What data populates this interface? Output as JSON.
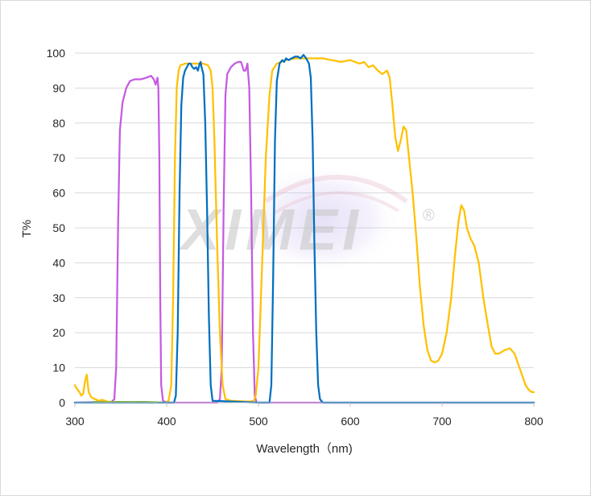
{
  "chart_data": {
    "type": "line",
    "title": "",
    "xlabel": "Wavelength（nm)",
    "ylabel": "T%",
    "xlim": [
      300,
      800
    ],
    "ylim": [
      0,
      100
    ],
    "xticks": [
      300,
      400,
      500,
      600,
      700,
      800
    ],
    "yticks": [
      0,
      10,
      20,
      30,
      40,
      50,
      60,
      70,
      80,
      90,
      100
    ],
    "grid": "horizontal",
    "legend": "none",
    "watermark": "XIMEI",
    "watermark_mark": "®",
    "series": [
      {
        "color": "#c55ae3",
        "points": [
          [
            300,
            0
          ],
          [
            340,
            0.2
          ],
          [
            343,
            1
          ],
          [
            345,
            10
          ],
          [
            347,
            50
          ],
          [
            349,
            78
          ],
          [
            352,
            86
          ],
          [
            356,
            90
          ],
          [
            360,
            92
          ],
          [
            365,
            92.5
          ],
          [
            372,
            92.5
          ],
          [
            378,
            93
          ],
          [
            383,
            93.5
          ],
          [
            386,
            92.5
          ],
          [
            388,
            91
          ],
          [
            390,
            93
          ],
          [
            391,
            90
          ],
          [
            392,
            70
          ],
          [
            393,
            30
          ],
          [
            394,
            5
          ],
          [
            396,
            0.5
          ],
          [
            400,
            0
          ],
          [
            455,
            0
          ],
          [
            458,
            1
          ],
          [
            460,
            10
          ],
          [
            462,
            55
          ],
          [
            464,
            88
          ],
          [
            466,
            94
          ],
          [
            470,
            96
          ],
          [
            474,
            97
          ],
          [
            478,
            97.5
          ],
          [
            481,
            97.5
          ],
          [
            484,
            95
          ],
          [
            486,
            95
          ],
          [
            488,
            97
          ],
          [
            490,
            90
          ],
          [
            492,
            60
          ],
          [
            494,
            20
          ],
          [
            496,
            2
          ],
          [
            498,
            0
          ],
          [
            800,
            0
          ]
        ]
      },
      {
        "color": "#ffc000",
        "points": [
          [
            300,
            5
          ],
          [
            302,
            4
          ],
          [
            305,
            3
          ],
          [
            307,
            2
          ],
          [
            309,
            2.5
          ],
          [
            311,
            6
          ],
          [
            313,
            8
          ],
          [
            315,
            3
          ],
          [
            318,
            1.5
          ],
          [
            322,
            1
          ],
          [
            326,
            0.5
          ],
          [
            330,
            0.8
          ],
          [
            335,
            0.3
          ],
          [
            340,
            0.2
          ],
          [
            398,
            0
          ],
          [
            402,
            0.5
          ],
          [
            405,
            5
          ],
          [
            407,
            30
          ],
          [
            409,
            70
          ],
          [
            411,
            90
          ],
          [
            413,
            95
          ],
          [
            415,
            96.5
          ],
          [
            420,
            97
          ],
          [
            430,
            97
          ],
          [
            440,
            97
          ],
          [
            445,
            96.5
          ],
          [
            448,
            95
          ],
          [
            450,
            90
          ],
          [
            452,
            75
          ],
          [
            455,
            45
          ],
          [
            458,
            20
          ],
          [
            461,
            5
          ],
          [
            464,
            1
          ],
          [
            470,
            0.5
          ],
          [
            490,
            0.3
          ],
          [
            495,
            0.5
          ],
          [
            497,
            2
          ],
          [
            500,
            10
          ],
          [
            504,
            40
          ],
          [
            508,
            70
          ],
          [
            512,
            88
          ],
          [
            515,
            95
          ],
          [
            520,
            97
          ],
          [
            530,
            98
          ],
          [
            540,
            98.5
          ],
          [
            560,
            98.5
          ],
          [
            570,
            98.5
          ],
          [
            580,
            98
          ],
          [
            590,
            97.5
          ],
          [
            600,
            98
          ],
          [
            610,
            97
          ],
          [
            615,
            97.5
          ],
          [
            620,
            96
          ],
          [
            625,
            96.5
          ],
          [
            630,
            95
          ],
          [
            635,
            94
          ],
          [
            640,
            95
          ],
          [
            643,
            93
          ],
          [
            646,
            85
          ],
          [
            649,
            76
          ],
          [
            652,
            72
          ],
          [
            655,
            75
          ],
          [
            658,
            79
          ],
          [
            661,
            78
          ],
          [
            664,
            70
          ],
          [
            668,
            60
          ],
          [
            672,
            47
          ],
          [
            676,
            33
          ],
          [
            680,
            22
          ],
          [
            684,
            15
          ],
          [
            688,
            12
          ],
          [
            692,
            11.5
          ],
          [
            696,
            12
          ],
          [
            700,
            14
          ],
          [
            705,
            20
          ],
          [
            710,
            30
          ],
          [
            714,
            42
          ],
          [
            718,
            52
          ],
          [
            721,
            56.5
          ],
          [
            724,
            55
          ],
          [
            727,
            50
          ],
          [
            731,
            47
          ],
          [
            735,
            45
          ],
          [
            740,
            40
          ],
          [
            745,
            30
          ],
          [
            750,
            22
          ],
          [
            754,
            16
          ],
          [
            758,
            14
          ],
          [
            762,
            14
          ],
          [
            768,
            15
          ],
          [
            774,
            15.5
          ],
          [
            779,
            14
          ],
          [
            783,
            11
          ],
          [
            787,
            8
          ],
          [
            791,
            5
          ],
          [
            795,
            3.5
          ],
          [
            798,
            3
          ],
          [
            800,
            3
          ]
        ]
      },
      {
        "color": "#0070c0",
        "points": [
          [
            300,
            0
          ],
          [
            408,
            0
          ],
          [
            410,
            2
          ],
          [
            412,
            20
          ],
          [
            414,
            60
          ],
          [
            416,
            85
          ],
          [
            418,
            93
          ],
          [
            420,
            95
          ],
          [
            422,
            96
          ],
          [
            424,
            97
          ],
          [
            426,
            97
          ],
          [
            428,
            96
          ],
          [
            430,
            95.5
          ],
          [
            432,
            96
          ],
          [
            434,
            95
          ],
          [
            436,
            97
          ],
          [
            437,
            97.5
          ],
          [
            438,
            96
          ],
          [
            440,
            94
          ],
          [
            442,
            80
          ],
          [
            444,
            55
          ],
          [
            446,
            25
          ],
          [
            448,
            5
          ],
          [
            450,
            0.5
          ],
          [
            500,
            0
          ],
          [
            512,
            0
          ],
          [
            514,
            5
          ],
          [
            516,
            35
          ],
          [
            518,
            75
          ],
          [
            520,
            92
          ],
          [
            523,
            97
          ],
          [
            526,
            98
          ],
          [
            528,
            97.5
          ],
          [
            530,
            98.5
          ],
          [
            533,
            98
          ],
          [
            536,
            98.5
          ],
          [
            540,
            99
          ],
          [
            543,
            99
          ],
          [
            546,
            98.5
          ],
          [
            549,
            99.5
          ],
          [
            552,
            98.5
          ],
          [
            555,
            97
          ],
          [
            557,
            93
          ],
          [
            559,
            75
          ],
          [
            561,
            45
          ],
          [
            563,
            20
          ],
          [
            565,
            5
          ],
          [
            567,
            1
          ],
          [
            570,
            0
          ],
          [
            800,
            0
          ]
        ]
      },
      {
        "color": "#70ad47",
        "points": [
          [
            320,
            0.2
          ],
          [
            335,
            0.1
          ],
          [
            345,
            0.2
          ],
          [
            360,
            0.15
          ],
          [
            375,
            0.2
          ],
          [
            390,
            0.1
          ]
        ]
      }
    ]
  }
}
